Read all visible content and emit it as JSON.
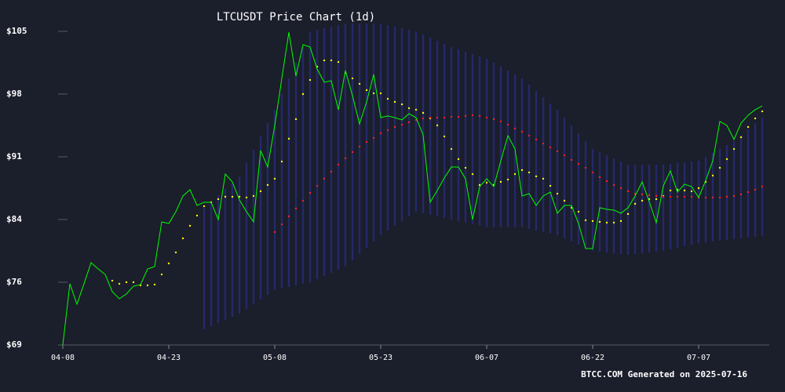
{
  "chart_data": {
    "type": "line",
    "title": "LTCUSDT Price Chart (1d)",
    "footer": "BTCC.COM Generated on 2025-07-16",
    "categories": [
      "04-08",
      null,
      null,
      null,
      null,
      null,
      null,
      null,
      null,
      null,
      null,
      null,
      null,
      null,
      null,
      "04-23",
      null,
      null,
      null,
      null,
      null,
      null,
      null,
      null,
      null,
      null,
      null,
      null,
      null,
      null,
      "05-08",
      null,
      null,
      null,
      null,
      null,
      null,
      null,
      null,
      null,
      null,
      null,
      null,
      null,
      null,
      "05-23",
      null,
      null,
      null,
      null,
      null,
      null,
      null,
      null,
      null,
      null,
      null,
      null,
      null,
      null,
      "06-07",
      null,
      null,
      null,
      null,
      null,
      null,
      null,
      null,
      null,
      null,
      null,
      null,
      null,
      null,
      "06-22",
      null,
      null,
      null,
      null,
      null,
      null,
      null,
      null,
      null,
      null,
      null,
      null,
      null,
      null,
      "07-07",
      null,
      null,
      null,
      null,
      null,
      null,
      null,
      null,
      null
    ],
    "ylim": [
      68.9,
      105.4
    ],
    "yticks": [
      {
        "value": 68.9,
        "label": "$69"
      },
      {
        "value": 76.2,
        "label": "$76"
      },
      {
        "value": 83.5,
        "label": "$84"
      },
      {
        "value": 90.8,
        "label": "$91"
      },
      {
        "value": 98.1,
        "label": "$98"
      },
      {
        "value": 105.4,
        "label": "$105"
      }
    ],
    "grid": false,
    "series": [
      {
        "color": "#00ff00",
        "style": "line",
        "values": [
          68.9,
          76.02,
          73.65,
          76.02,
          78.48,
          77.75,
          77.11,
          75.11,
          74.28,
          74.83,
          75.74,
          75.93,
          77.75,
          78.03,
          83.23,
          83.04,
          84.41,
          86.24,
          86.97,
          85.14,
          85.51,
          85.51,
          83.5,
          88.79,
          87.88,
          85.78,
          84.41,
          83.23,
          91.53,
          89.61,
          94.45,
          99.93,
          105.3,
          100.2,
          103.85,
          103.58,
          101.02,
          99.47,
          99.65,
          96.28,
          100.84,
          97.92,
          94.63,
          97.19,
          100.38,
          95.36,
          95.55,
          95.36,
          95.09,
          95.82,
          95.36,
          93.36,
          85.51,
          86.88,
          88.34,
          89.61,
          89.61,
          88.25,
          83.5,
          87.33,
          88.25,
          87.33,
          90.34,
          93.26,
          91.71,
          86.24,
          86.51,
          85.14,
          86.24,
          86.69,
          84.23,
          85.14,
          85.14,
          83.04,
          80.12,
          80.12,
          84.87,
          84.69,
          84.6,
          84.23,
          84.87,
          86.24,
          87.88,
          85.6,
          83.14,
          87.42,
          89.16,
          86.69,
          87.61,
          87.33,
          86.06,
          88.06,
          90.34,
          94.91,
          94.45,
          92.81,
          94.72,
          95.64,
          96.28,
          96.73
        ]
      },
      {
        "color": "#ffff00",
        "style": "dots",
        "values": [
          null,
          null,
          null,
          null,
          null,
          null,
          null,
          76.38,
          76.02,
          76.2,
          76.2,
          75.84,
          75.84,
          75.93,
          77.11,
          78.39,
          79.67,
          81.31,
          82.77,
          83.96,
          85.05,
          85.51,
          85.87,
          86.15,
          86.15,
          86.15,
          86.06,
          86.24,
          86.79,
          87.52,
          88.25,
          90.25,
          92.9,
          95.18,
          98.1,
          99.74,
          101.29,
          102.02,
          102.02,
          101.84,
          100.56,
          99.93,
          99.29,
          98.56,
          98.19,
          98.19,
          97.55,
          97.19,
          96.91,
          96.46,
          96.28,
          95.91,
          95.27,
          94.45,
          93.17,
          91.71,
          90.53,
          89.52,
          88.79,
          87.52,
          87.79,
          87.52,
          87.88,
          88.15,
          88.79,
          89.25,
          88.98,
          88.52,
          88.25,
          87.42,
          86.51,
          85.69,
          84.87,
          84.41,
          83.41,
          83.32,
          83.23,
          83.14,
          83.14,
          83.32,
          84.14,
          85.33,
          85.69,
          85.87,
          85.87,
          86.24,
          86.88,
          86.97,
          86.88,
          86.79,
          87.15,
          87.88,
          88.61,
          89.52,
          90.53,
          91.71,
          93.08,
          94.27,
          95.27,
          96.09
        ]
      },
      {
        "color": "#ff2020",
        "style": "dots",
        "values": [
          null,
          null,
          null,
          null,
          null,
          null,
          null,
          null,
          null,
          null,
          null,
          null,
          null,
          null,
          null,
          null,
          null,
          null,
          null,
          null,
          null,
          null,
          null,
          null,
          null,
          null,
          null,
          null,
          null,
          null,
          82.04,
          82.95,
          83.87,
          84.78,
          85.69,
          86.6,
          87.42,
          88.25,
          89.07,
          89.89,
          90.62,
          91.35,
          91.99,
          92.53,
          92.99,
          93.54,
          93.9,
          94.27,
          94.54,
          94.82,
          95.09,
          95.27,
          95.36,
          95.36,
          95.36,
          95.45,
          95.45,
          95.55,
          95.64,
          95.55,
          95.36,
          95.18,
          94.91,
          94.54,
          94.09,
          93.72,
          93.26,
          92.81,
          92.35,
          91.9,
          91.44,
          90.98,
          90.44,
          89.98,
          89.52,
          88.98,
          88.43,
          87.97,
          87.52,
          87.15,
          86.79,
          86.51,
          86.42,
          86.33,
          86.24,
          86.15,
          86.15,
          86.15,
          86.15,
          86.15,
          86.06,
          86.06,
          86.06,
          86.06,
          86.15,
          86.24,
          86.42,
          86.69,
          86.97,
          87.33
        ]
      }
    ],
    "band": {
      "color": "#262c74",
      "upper": [
        null,
        null,
        null,
        null,
        null,
        null,
        null,
        null,
        null,
        null,
        null,
        null,
        null,
        null,
        null,
        null,
        null,
        null,
        null,
        null,
        84.87,
        85.6,
        86.33,
        87.06,
        87.79,
        88.52,
        90.07,
        91.62,
        93.17,
        94.73,
        96.28,
        98.1,
        99.93,
        101.75,
        103.58,
        105.4,
        105.58,
        105.76,
        105.95,
        106.13,
        106.31,
        106.31,
        106.31,
        106.31,
        106.31,
        106.31,
        106.13,
        105.95,
        105.76,
        105.58,
        105.4,
        105.04,
        104.67,
        104.31,
        103.94,
        103.58,
        103.31,
        103.03,
        102.76,
        102.48,
        102.21,
        101.75,
        101.3,
        100.84,
        100.39,
        99.93,
        99.2,
        98.47,
        97.74,
        97.01,
        96.28,
        95.37,
        94.45,
        93.54,
        92.62,
        91.71,
        91.35,
        90.98,
        90.62,
        90.25,
        89.89,
        89.89,
        89.89,
        89.89,
        89.89,
        89.89,
        89.98,
        90.07,
        90.16,
        90.25,
        90.34,
        90.8,
        91.26,
        91.71,
        92.17,
        92.63,
        93.31,
        94.0,
        94.68,
        95.36
      ],
      "lower": [
        null,
        null,
        null,
        null,
        null,
        null,
        null,
        null,
        null,
        null,
        null,
        null,
        null,
        null,
        null,
        null,
        null,
        null,
        null,
        null,
        70.73,
        71.09,
        71.46,
        71.82,
        72.19,
        72.55,
        73.1,
        73.65,
        74.19,
        74.74,
        75.29,
        75.47,
        75.65,
        75.84,
        76.02,
        76.2,
        76.57,
        76.93,
        77.3,
        77.66,
        78.03,
        78.76,
        79.49,
        80.22,
        80.95,
        81.68,
        82.23,
        82.77,
        83.32,
        83.87,
        84.41,
        84.23,
        84.05,
        83.86,
        83.68,
        83.5,
        83.32,
        83.14,
        82.95,
        82.77,
        82.59,
        82.59,
        82.59,
        82.59,
        82.59,
        82.59,
        82.41,
        82.22,
        82.04,
        81.86,
        81.68,
        81.32,
        80.95,
        80.59,
        80.22,
        79.86,
        79.77,
        79.67,
        79.58,
        79.48,
        79.39,
        79.48,
        79.58,
        79.67,
        79.77,
        79.86,
        80.04,
        80.22,
        80.4,
        80.58,
        80.76,
        80.85,
        80.94,
        81.04,
        81.13,
        81.22,
        81.31,
        81.4,
        81.5,
        81.59
      ]
    }
  }
}
